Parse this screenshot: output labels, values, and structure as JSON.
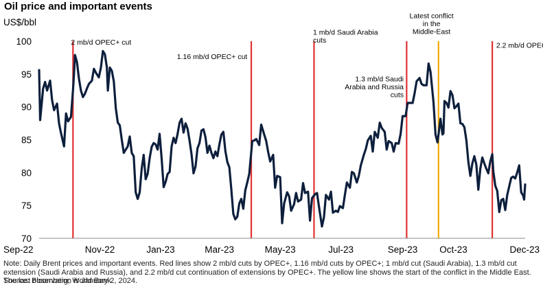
{
  "header": {
    "title": "Oil price and important events",
    "unit": "US$/bbl"
  },
  "footer": {
    "note": "Note: Daily Brent prices and important events. Red lines show 2 mb/d cuts by OPEC+, 1.16 mb/d cuts by OPEC+; 1 mb/d cut (Saudi Arabia), 1.3 mb/d cut extension (Saudi Arabia and Russia), and  2.2 mb/d cut continuation of extensions by OPEC+. The yellow line shows the start of the conflict in the Middle East. The last observation is January 2, 2024.",
    "source": "Source: Bloomberg; World Bank."
  },
  "chart_data": {
    "type": "line",
    "title": "Oil price and important events",
    "ylabel": "US$/bbl",
    "xlabel": "",
    "ylim": [
      70,
      100
    ],
    "yticks": [
      70,
      75,
      80,
      85,
      90,
      95,
      100
    ],
    "xlim": [
      "2022-09-01",
      "2024-01-02"
    ],
    "xtick_labels": [
      {
        "date": "2022-09-01",
        "label": "Sep-22"
      },
      {
        "date": "2022-11-01",
        "label": "Nov-22"
      },
      {
        "date": "2023-01-01",
        "label": "Jan-23"
      },
      {
        "date": "2023-03-01",
        "label": "Mar-23"
      },
      {
        "date": "2023-05-01",
        "label": "May-23"
      },
      {
        "date": "2023-07-01",
        "label": "Jul-23"
      },
      {
        "date": "2023-09-01",
        "label": "Sep-23"
      },
      {
        "date": "2023-10-22",
        "label": "Oct-23"
      },
      {
        "date": "2023-12-05",
        "label": "Dec-23"
      }
    ],
    "grid": false,
    "legend": "none",
    "series": [
      {
        "color": "#0d1f3c",
        "points": [
          [
            "2022-09-01",
            95.6
          ],
          [
            "2022-09-02",
            88.0
          ],
          [
            "2022-09-05",
            92.8
          ],
          [
            "2022-09-07",
            93.8
          ],
          [
            "2022-09-09",
            92.5
          ],
          [
            "2022-09-12",
            94.0
          ],
          [
            "2022-09-14",
            91.0
          ],
          [
            "2022-09-16",
            89.5
          ],
          [
            "2022-09-19",
            90.5
          ],
          [
            "2022-09-21",
            87.5
          ],
          [
            "2022-09-23",
            86.0
          ],
          [
            "2022-09-26",
            84.0
          ],
          [
            "2022-09-28",
            89.0
          ],
          [
            "2022-09-30",
            87.8
          ],
          [
            "2022-10-03",
            88.5
          ],
          [
            "2022-10-05",
            92.5
          ],
          [
            "2022-10-06",
            95.0
          ],
          [
            "2022-10-07",
            97.9
          ],
          [
            "2022-10-09",
            96.8
          ],
          [
            "2022-10-11",
            94.3
          ],
          [
            "2022-10-13",
            92.5
          ],
          [
            "2022-10-15",
            91.5
          ],
          [
            "2022-10-17",
            92.0
          ],
          [
            "2022-10-19",
            92.8
          ],
          [
            "2022-10-21",
            93.5
          ],
          [
            "2022-10-24",
            94.0
          ],
          [
            "2022-10-26",
            95.8
          ],
          [
            "2022-10-28",
            95.2
          ],
          [
            "2022-10-31",
            94.5
          ],
          [
            "2022-11-02",
            96.0
          ],
          [
            "2022-11-04",
            98.5
          ],
          [
            "2022-11-06",
            98.0
          ],
          [
            "2022-11-08",
            96.0
          ],
          [
            "2022-11-09",
            92.5
          ],
          [
            "2022-11-11",
            96.0
          ],
          [
            "2022-11-13",
            95.5
          ],
          [
            "2022-11-15",
            93.9
          ],
          [
            "2022-11-17",
            89.8
          ],
          [
            "2022-11-19",
            87.6
          ],
          [
            "2022-11-21",
            87.2
          ],
          [
            "2022-11-23",
            85.0
          ],
          [
            "2022-11-25",
            83.0
          ],
          [
            "2022-11-27",
            83.5
          ],
          [
            "2022-11-29",
            84.0
          ],
          [
            "2022-12-01",
            85.5
          ],
          [
            "2022-12-03",
            83.0
          ],
          [
            "2022-12-05",
            82.5
          ],
          [
            "2022-12-07",
            77.0
          ],
          [
            "2022-12-09",
            76.0
          ],
          [
            "2022-12-11",
            77.0
          ],
          [
            "2022-12-13",
            80.6
          ],
          [
            "2022-12-15",
            82.7
          ],
          [
            "2022-12-17",
            79.0
          ],
          [
            "2022-12-19",
            79.8
          ],
          [
            "2022-12-21",
            82.2
          ],
          [
            "2022-12-23",
            83.9
          ],
          [
            "2022-12-25",
            84.5
          ],
          [
            "2022-12-27",
            84.3
          ],
          [
            "2022-12-29",
            83.5
          ],
          [
            "2022-12-31",
            85.9
          ],
          [
            "2023-01-02",
            82.1
          ],
          [
            "2023-01-04",
            77.8
          ],
          [
            "2023-01-06",
            78.6
          ],
          [
            "2023-01-08",
            79.8
          ],
          [
            "2023-01-10",
            80.1
          ],
          [
            "2023-01-12",
            84.0
          ],
          [
            "2023-01-14",
            85.3
          ],
          [
            "2023-01-16",
            84.5
          ],
          [
            "2023-01-18",
            85.9
          ],
          [
            "2023-01-20",
            87.6
          ],
          [
            "2023-01-22",
            88.2
          ],
          [
            "2023-01-24",
            86.1
          ],
          [
            "2023-01-26",
            87.5
          ],
          [
            "2023-01-28",
            86.7
          ],
          [
            "2023-01-30",
            84.9
          ],
          [
            "2023-02-01",
            82.8
          ],
          [
            "2023-02-03",
            79.9
          ],
          [
            "2023-02-05",
            80.9
          ],
          [
            "2023-02-07",
            83.7
          ],
          [
            "2023-02-09",
            84.5
          ],
          [
            "2023-02-11",
            86.4
          ],
          [
            "2023-02-13",
            86.6
          ],
          [
            "2023-02-15",
            85.4
          ],
          [
            "2023-02-17",
            83.0
          ],
          [
            "2023-02-19",
            84.1
          ],
          [
            "2023-02-21",
            83.0
          ],
          [
            "2023-02-23",
            82.2
          ],
          [
            "2023-02-25",
            83.2
          ],
          [
            "2023-02-27",
            82.5
          ],
          [
            "2023-03-01",
            84.3
          ],
          [
            "2023-03-03",
            85.8
          ],
          [
            "2023-03-05",
            86.2
          ],
          [
            "2023-03-07",
            83.3
          ],
          [
            "2023-03-09",
            81.6
          ],
          [
            "2023-03-11",
            80.8
          ],
          [
            "2023-03-13",
            77.4
          ],
          [
            "2023-03-15",
            73.7
          ],
          [
            "2023-03-17",
            72.9
          ],
          [
            "2023-03-19",
            73.3
          ],
          [
            "2023-03-21",
            75.3
          ],
          [
            "2023-03-23",
            76.0
          ],
          [
            "2023-03-25",
            74.5
          ],
          [
            "2023-03-27",
            77.3
          ],
          [
            "2023-03-29",
            78.5
          ],
          [
            "2023-03-31",
            79.8
          ],
          [
            "2023-04-03",
            84.8
          ],
          [
            "2023-04-05",
            84.9
          ],
          [
            "2023-04-07",
            85.1
          ],
          [
            "2023-04-10",
            84.2
          ],
          [
            "2023-04-12",
            87.3
          ],
          [
            "2023-04-14",
            86.3
          ],
          [
            "2023-04-17",
            84.8
          ],
          [
            "2023-04-19",
            83.1
          ],
          [
            "2023-04-21",
            81.7
          ],
          [
            "2023-04-24",
            82.7
          ],
          [
            "2023-04-26",
            77.7
          ],
          [
            "2023-04-28",
            79.5
          ],
          [
            "2023-05-01",
            79.3
          ],
          [
            "2023-05-03",
            72.3
          ],
          [
            "2023-05-05",
            75.3
          ],
          [
            "2023-05-08",
            77.0
          ],
          [
            "2023-05-10",
            76.4
          ],
          [
            "2023-05-12",
            74.2
          ],
          [
            "2023-05-15",
            75.2
          ],
          [
            "2023-05-17",
            76.9
          ],
          [
            "2023-05-19",
            75.6
          ],
          [
            "2023-05-22",
            75.9
          ],
          [
            "2023-05-24",
            78.4
          ],
          [
            "2023-05-26",
            76.9
          ],
          [
            "2023-05-29",
            77.1
          ],
          [
            "2023-05-31",
            72.7
          ],
          [
            "2023-06-02",
            76.1
          ],
          [
            "2023-06-05",
            76.7
          ],
          [
            "2023-06-07",
            76.9
          ],
          [
            "2023-06-09",
            74.8
          ],
          [
            "2023-06-12",
            71.8
          ],
          [
            "2023-06-14",
            73.2
          ],
          [
            "2023-06-16",
            76.6
          ],
          [
            "2023-06-19",
            75.9
          ],
          [
            "2023-06-21",
            77.1
          ],
          [
            "2023-06-23",
            73.9
          ],
          [
            "2023-06-26",
            74.2
          ],
          [
            "2023-06-28",
            74.0
          ],
          [
            "2023-06-30",
            74.9
          ],
          [
            "2023-07-03",
            74.6
          ],
          [
            "2023-07-05",
            76.6
          ],
          [
            "2023-07-07",
            78.5
          ],
          [
            "2023-07-10",
            77.7
          ],
          [
            "2023-07-12",
            80.1
          ],
          [
            "2023-07-14",
            79.9
          ],
          [
            "2023-07-17",
            78.5
          ],
          [
            "2023-07-19",
            79.5
          ],
          [
            "2023-07-21",
            81.1
          ],
          [
            "2023-07-24",
            82.7
          ],
          [
            "2023-07-26",
            83.6
          ],
          [
            "2023-07-28",
            84.9
          ],
          [
            "2023-07-31",
            85.6
          ],
          [
            "2023-08-02",
            83.2
          ],
          [
            "2023-08-04",
            86.2
          ],
          [
            "2023-08-07",
            85.3
          ],
          [
            "2023-08-09",
            87.6
          ],
          [
            "2023-08-11",
            86.8
          ],
          [
            "2023-08-14",
            86.2
          ],
          [
            "2023-08-16",
            83.5
          ],
          [
            "2023-08-18",
            84.8
          ],
          [
            "2023-08-21",
            84.5
          ],
          [
            "2023-08-23",
            83.2
          ],
          [
            "2023-08-25",
            84.5
          ],
          [
            "2023-08-28",
            84.4
          ],
          [
            "2023-08-30",
            85.9
          ],
          [
            "2023-09-01",
            88.6
          ],
          [
            "2023-09-04",
            88.6
          ],
          [
            "2023-09-06",
            90.6
          ],
          [
            "2023-09-08",
            90.6
          ],
          [
            "2023-09-11",
            90.6
          ],
          [
            "2023-09-13",
            92.1
          ],
          [
            "2023-09-15",
            93.9
          ],
          [
            "2023-09-18",
            94.4
          ],
          [
            "2023-09-20",
            93.5
          ],
          [
            "2023-09-22",
            93.3
          ],
          [
            "2023-09-25",
            93.3
          ],
          [
            "2023-09-27",
            96.6
          ],
          [
            "2023-09-29",
            95.3
          ],
          [
            "2023-10-02",
            90.7
          ],
          [
            "2023-10-04",
            85.8
          ],
          [
            "2023-10-06",
            84.6
          ],
          [
            "2023-10-09",
            88.2
          ],
          [
            "2023-10-11",
            85.8
          ],
          [
            "2023-10-12",
            86.0
          ],
          [
            "2023-10-13",
            90.9
          ],
          [
            "2023-10-15",
            90.6
          ],
          [
            "2023-10-17",
            89.9
          ],
          [
            "2023-10-19",
            92.4
          ],
          [
            "2023-10-21",
            91.8
          ],
          [
            "2023-10-23",
            89.8
          ],
          [
            "2023-10-25",
            90.1
          ],
          [
            "2023-10-27",
            90.5
          ],
          [
            "2023-10-29",
            87.5
          ],
          [
            "2023-10-31",
            87.4
          ],
          [
            "2023-11-02",
            86.9
          ],
          [
            "2023-11-04",
            84.9
          ],
          [
            "2023-11-06",
            81.6
          ],
          [
            "2023-11-08",
            79.5
          ],
          [
            "2023-11-10",
            81.4
          ],
          [
            "2023-11-12",
            82.5
          ],
          [
            "2023-11-14",
            81.2
          ],
          [
            "2023-11-16",
            77.4
          ],
          [
            "2023-11-18",
            80.6
          ],
          [
            "2023-11-20",
            82.3
          ],
          [
            "2023-11-22",
            81.4
          ],
          [
            "2023-11-24",
            80.6
          ],
          [
            "2023-11-26",
            79.9
          ],
          [
            "2023-11-28",
            81.7
          ],
          [
            "2023-11-30",
            82.8
          ],
          [
            "2023-12-01",
            80.2
          ],
          [
            "2023-12-03",
            78.0
          ],
          [
            "2023-12-05",
            77.2
          ],
          [
            "2023-12-07",
            74.0
          ],
          [
            "2023-12-09",
            75.8
          ],
          [
            "2023-12-11",
            76.0
          ],
          [
            "2023-12-13",
            74.3
          ],
          [
            "2023-12-15",
            76.6
          ],
          [
            "2023-12-17",
            77.9
          ],
          [
            "2023-12-19",
            79.2
          ],
          [
            "2023-12-21",
            79.4
          ],
          [
            "2023-12-23",
            79.1
          ],
          [
            "2023-12-25",
            80.0
          ],
          [
            "2023-12-27",
            81.1
          ],
          [
            "2023-12-29",
            77.0
          ],
          [
            "2023-12-31",
            76.5
          ],
          [
            "2024-01-01",
            75.9
          ],
          [
            "2024-01-02",
            78.2
          ]
        ]
      }
    ],
    "events": [
      {
        "date": "2022-10-05",
        "color": "#e03131",
        "label": "2 mb/d OPEC+ cut",
        "label_anchor": "start",
        "label_offset_days": -2,
        "label_y": 99.5
      },
      {
        "date": "2023-04-02",
        "color": "#e03131",
        "label": "1.16 mb/d OPEC+ cut",
        "label_anchor": "end",
        "label_offset_days": -4,
        "label_y": 97.3
      },
      {
        "date": "2023-06-04",
        "color": "#e03131",
        "label": "1 mb/d Saudi Arabia cuts",
        "label_anchor": "start",
        "label_offset_days": -1,
        "label_y": 101.0
      },
      {
        "date": "2023-09-05",
        "color": "#e03131",
        "label": "1.3 mb/d Saudi Arabia and Russia cuts",
        "label_anchor": "end",
        "label_offset_days": -3,
        "label_y": 93.9
      },
      {
        "date": "2023-10-07",
        "color": "#f2a900",
        "label": "Latest conflict in the Middle-East",
        "label_anchor": "middle",
        "label_offset_days": -7,
        "label_y": 103.5
      },
      {
        "date": "2023-11-30",
        "color": "#e03131",
        "label": "2.2 mb/d OPEC+ cut",
        "label_anchor": "start",
        "label_offset_days": 4,
        "label_y": 99.0
      }
    ]
  }
}
